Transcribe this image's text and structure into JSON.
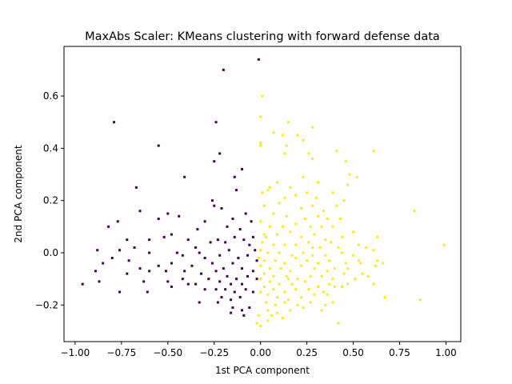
{
  "chart_data": {
    "type": "scatter",
    "title": "MaxAbs Scaler: KMeans clustering with forward defense data",
    "xlabel": "1st PCA component",
    "ylabel": "2nd PCA component",
    "xlim": [
      -1.06,
      1.08
    ],
    "ylim": [
      -0.34,
      0.79
    ],
    "x_ticks": [
      -1.0,
      -0.75,
      -0.5,
      -0.25,
      0.0,
      0.25,
      0.5,
      0.75,
      1.0
    ],
    "x_tick_labels": [
      "−1.00",
      "−0.75",
      "−0.50",
      "−0.25",
      "0.00",
      "0.25",
      "0.50",
      "0.75",
      "1.00"
    ],
    "y_ticks": [
      -0.2,
      0.0,
      0.2,
      0.4,
      0.6
    ],
    "y_tick_labels": [
      "−0.2",
      "0.0",
      "0.2",
      "0.4",
      "0.6"
    ],
    "grid": false,
    "legend": "none",
    "series": [
      {
        "color": "#440154",
        "points": [
          [
            -0.01,
            0.74
          ],
          [
            -0.2,
            0.7
          ],
          [
            -0.24,
            0.5
          ],
          [
            -0.79,
            0.5
          ],
          [
            -0.55,
            0.41
          ],
          [
            -0.22,
            0.38
          ],
          [
            -0.25,
            0.35
          ],
          [
            -0.41,
            0.29
          ],
          [
            -0.14,
            0.29
          ],
          [
            -0.1,
            0.32
          ],
          [
            -0.67,
            0.25
          ],
          [
            -0.26,
            0.2
          ],
          [
            -0.13,
            0.24
          ],
          [
            -0.25,
            0.18
          ],
          [
            -0.65,
            0.16
          ],
          [
            -0.5,
            0.15
          ],
          [
            -0.44,
            0.14
          ],
          [
            -0.77,
            0.12
          ],
          [
            -0.82,
            0.1
          ],
          [
            -0.55,
            0.13
          ],
          [
            -0.48,
            0.07
          ],
          [
            -0.34,
            0.09
          ],
          [
            -0.3,
            0.12
          ],
          [
            -0.21,
            0.17
          ],
          [
            -0.18,
            0.1
          ],
          [
            -0.15,
            0.13
          ],
          [
            -0.11,
            0.09
          ],
          [
            -0.08,
            0.15
          ],
          [
            -0.05,
            0.12
          ],
          [
            -0.04,
            0.06
          ],
          [
            -0.72,
            0.05
          ],
          [
            -0.6,
            0.05
          ],
          [
            -0.52,
            0.06
          ],
          [
            -0.39,
            0.05
          ],
          [
            -0.35,
            0.02
          ],
          [
            -0.27,
            0.04
          ],
          [
            -0.23,
            0.05
          ],
          [
            -0.19,
            0.04
          ],
          [
            -0.14,
            0.06
          ],
          [
            -0.09,
            0.05
          ],
          [
            -0.06,
            0.03
          ],
          [
            -0.03,
            0.01
          ],
          [
            -0.88,
            0.01
          ],
          [
            -0.76,
            0.01
          ],
          [
            -0.68,
            0.02
          ],
          [
            -0.6,
            0.0
          ],
          [
            -0.45,
            0.0
          ],
          [
            -0.42,
            -0.01
          ],
          [
            -0.33,
            0.0
          ],
          [
            -0.3,
            -0.02
          ],
          [
            -0.22,
            -0.01
          ],
          [
            -0.17,
            0.01
          ],
          [
            -0.12,
            -0.02
          ],
          [
            -0.07,
            -0.01
          ],
          [
            -0.02,
            -0.03
          ],
          [
            -0.8,
            -0.02
          ],
          [
            -0.71,
            -0.03
          ],
          [
            -0.85,
            -0.04
          ],
          [
            -0.65,
            -0.06
          ],
          [
            -0.55,
            -0.05
          ],
          [
            -0.48,
            -0.04
          ],
          [
            -0.37,
            -0.05
          ],
          [
            -0.26,
            -0.04
          ],
          [
            -0.2,
            -0.06
          ],
          [
            -0.15,
            -0.04
          ],
          [
            -0.1,
            -0.06
          ],
          [
            -0.04,
            -0.07
          ],
          [
            -0.89,
            -0.07
          ],
          [
            -0.6,
            -0.07
          ],
          [
            -0.51,
            -0.07
          ],
          [
            -0.41,
            -0.07
          ],
          [
            -0.32,
            -0.08
          ],
          [
            -0.24,
            -0.07
          ],
          [
            -0.18,
            -0.09
          ],
          [
            -0.13,
            -0.1
          ],
          [
            -0.07,
            -0.09
          ],
          [
            -0.02,
            -0.1
          ],
          [
            -0.87,
            -0.11
          ],
          [
            -0.72,
            -0.08
          ],
          [
            -0.42,
            -0.1
          ],
          [
            -0.35,
            -0.12
          ],
          [
            -0.28,
            -0.1
          ],
          [
            -0.22,
            -0.11
          ],
          [
            -0.16,
            -0.12
          ],
          [
            -0.1,
            -0.12
          ],
          [
            -0.96,
            -0.12
          ],
          [
            -0.63,
            -0.11
          ],
          [
            -0.5,
            -0.11
          ],
          [
            -0.39,
            -0.12
          ],
          [
            -0.3,
            -0.14
          ],
          [
            -0.24,
            -0.14
          ],
          [
            -0.19,
            -0.14
          ],
          [
            -0.14,
            -0.15
          ],
          [
            -0.08,
            -0.14
          ],
          [
            -0.04,
            -0.15
          ],
          [
            -0.76,
            -0.15
          ],
          [
            -0.61,
            -0.15
          ],
          [
            -0.48,
            -0.13
          ],
          [
            -0.21,
            -0.17
          ],
          [
            -0.16,
            -0.18
          ],
          [
            -0.11,
            -0.17
          ],
          [
            -0.23,
            -0.19
          ],
          [
            -0.33,
            -0.19
          ],
          [
            -0.15,
            -0.21
          ],
          [
            -0.1,
            -0.22
          ],
          [
            -0.06,
            -0.21
          ],
          [
            -0.16,
            -0.23
          ],
          [
            -0.09,
            -0.24
          ]
        ]
      },
      {
        "color": "#fde725",
        "points": [
          [
            0.01,
            0.6
          ],
          [
            0.0,
            0.52
          ],
          [
            0.15,
            0.5
          ],
          [
            0.28,
            0.48
          ],
          [
            0.07,
            0.46
          ],
          [
            0.12,
            0.45
          ],
          [
            0.2,
            0.45
          ],
          [
            0.0,
            0.42
          ],
          [
            0.0,
            0.41
          ],
          [
            0.14,
            0.41
          ],
          [
            0.23,
            0.43
          ],
          [
            0.13,
            0.38
          ],
          [
            0.26,
            0.38
          ],
          [
            0.28,
            0.36
          ],
          [
            0.41,
            0.39
          ],
          [
            0.61,
            0.39
          ],
          [
            0.48,
            0.3
          ],
          [
            0.46,
            0.35
          ],
          [
            0.52,
            0.29
          ],
          [
            0.05,
            0.25
          ],
          [
            0.09,
            0.27
          ],
          [
            0.16,
            0.25
          ],
          [
            0.23,
            0.29
          ],
          [
            0.31,
            0.27
          ],
          [
            0.47,
            0.26
          ],
          [
            0.01,
            0.23
          ],
          [
            0.04,
            0.24
          ],
          [
            0.13,
            0.21
          ],
          [
            0.19,
            0.22
          ],
          [
            0.25,
            0.23
          ],
          [
            0.3,
            0.21
          ],
          [
            0.39,
            0.23
          ],
          [
            0.45,
            0.2
          ],
          [
            0.02,
            0.18
          ],
          [
            0.1,
            0.19
          ],
          [
            0.22,
            0.17
          ],
          [
            0.28,
            0.18
          ],
          [
            0.34,
            0.16
          ],
          [
            0.41,
            0.18
          ],
          [
            0.07,
            0.15
          ],
          [
            0.14,
            0.14
          ],
          [
            0.24,
            0.13
          ],
          [
            0.31,
            0.14
          ],
          [
            0.36,
            0.13
          ],
          [
            0.43,
            0.13
          ],
          [
            0.83,
            0.16
          ],
          [
            0.0,
            0.12
          ],
          [
            0.05,
            0.1
          ],
          [
            0.12,
            0.1
          ],
          [
            0.19,
            0.11
          ],
          [
            0.27,
            0.1
          ],
          [
            0.33,
            0.1
          ],
          [
            0.39,
            0.1
          ],
          [
            0.02,
            0.07
          ],
          [
            0.09,
            0.07
          ],
          [
            0.16,
            0.08
          ],
          [
            0.22,
            0.06
          ],
          [
            0.29,
            0.07
          ],
          [
            0.35,
            0.05
          ],
          [
            0.44,
            0.06
          ],
          [
            0.5,
            0.08
          ],
          [
            0.63,
            0.06
          ],
          [
            0.01,
            0.04
          ],
          [
            0.07,
            0.03
          ],
          [
            0.13,
            0.03
          ],
          [
            0.19,
            0.03
          ],
          [
            0.26,
            0.04
          ],
          [
            0.32,
            0.02
          ],
          [
            0.38,
            0.04
          ],
          [
            0.42,
            0.02
          ],
          [
            0.53,
            0.03
          ],
          [
            0.57,
            0.02
          ],
          [
            0.0,
            0.01
          ],
          [
            0.04,
            0.0
          ],
          [
            0.1,
            0.0
          ],
          [
            0.17,
            -0.01
          ],
          [
            0.23,
            0.0
          ],
          [
            0.28,
            -0.01
          ],
          [
            0.35,
            -0.01
          ],
          [
            0.44,
            0.0
          ],
          [
            0.5,
            -0.01
          ],
          [
            0.61,
            0.01
          ],
          [
            0.99,
            0.03
          ],
          [
            0.02,
            -0.03
          ],
          [
            0.08,
            -0.03
          ],
          [
            0.13,
            -0.04
          ],
          [
            0.19,
            -0.02
          ],
          [
            0.25,
            -0.03
          ],
          [
            0.31,
            -0.04
          ],
          [
            0.37,
            -0.03
          ],
          [
            0.46,
            -0.04
          ],
          [
            0.53,
            -0.03
          ],
          [
            0.0,
            -0.05
          ],
          [
            0.05,
            -0.06
          ],
          [
            0.11,
            -0.06
          ],
          [
            0.16,
            -0.07
          ],
          [
            0.22,
            -0.05
          ],
          [
            0.29,
            -0.06
          ],
          [
            0.36,
            -0.07
          ],
          [
            0.4,
            -0.06
          ],
          [
            0.47,
            -0.06
          ],
          [
            0.54,
            -0.04
          ],
          [
            0.62,
            -0.05
          ],
          [
            0.63,
            -0.03
          ],
          [
            0.02,
            -0.08
          ],
          [
            0.07,
            -0.09
          ],
          [
            0.14,
            -0.09
          ],
          [
            0.2,
            -0.1
          ],
          [
            0.27,
            -0.09
          ],
          [
            0.33,
            -0.09
          ],
          [
            0.39,
            -0.1
          ],
          [
            0.45,
            -0.08
          ],
          [
            0.55,
            -0.08
          ],
          [
            0.66,
            -0.04
          ],
          [
            0.0,
            -0.1
          ],
          [
            0.05,
            -0.11
          ],
          [
            0.1,
            -0.12
          ],
          [
            0.17,
            -0.12
          ],
          [
            0.24,
            -0.11
          ],
          [
            0.31,
            -0.13
          ],
          [
            0.37,
            -0.12
          ],
          [
            0.44,
            -0.13
          ],
          [
            0.51,
            -0.1
          ],
          [
            0.58,
            -0.09
          ],
          [
            0.02,
            -0.13
          ],
          [
            0.07,
            -0.14
          ],
          [
            0.13,
            -0.15
          ],
          [
            0.19,
            -0.14
          ],
          [
            0.26,
            -0.14
          ],
          [
            0.34,
            -0.15
          ],
          [
            0.4,
            -0.13
          ],
          [
            0.47,
            -0.12
          ],
          [
            0.61,
            -0.12
          ],
          [
            0.0,
            -0.15
          ],
          [
            0.04,
            -0.16
          ],
          [
            0.09,
            -0.17
          ],
          [
            0.15,
            -0.18
          ],
          [
            0.22,
            -0.17
          ],
          [
            0.29,
            -0.16
          ],
          [
            0.36,
            -0.16
          ],
          [
            0.03,
            -0.19
          ],
          [
            0.08,
            -0.2
          ],
          [
            0.13,
            -0.19
          ],
          [
            0.2,
            -0.2
          ],
          [
            0.27,
            -0.19
          ],
          [
            0.35,
            -0.2
          ],
          [
            0.67,
            -0.17
          ],
          [
            0.86,
            -0.18
          ],
          [
            0.04,
            -0.22
          ],
          [
            0.09,
            -0.23
          ],
          [
            0.16,
            -0.22
          ],
          [
            0.23,
            -0.21
          ],
          [
            0.39,
            -0.19
          ],
          [
            -0.01,
            -0.24
          ],
          [
            0.06,
            -0.24
          ],
          [
            0.12,
            -0.25
          ],
          [
            -0.02,
            -0.27
          ],
          [
            0.04,
            -0.26
          ],
          [
            0.0,
            -0.28
          ],
          [
            0.42,
            -0.27
          ],
          [
            -0.01,
            -0.02
          ],
          [
            0.03,
            0.06
          ],
          [
            0.15,
            -0.1
          ],
          [
            0.33,
            -0.22
          ],
          [
            0.28,
            0.02
          ]
        ]
      }
    ]
  }
}
